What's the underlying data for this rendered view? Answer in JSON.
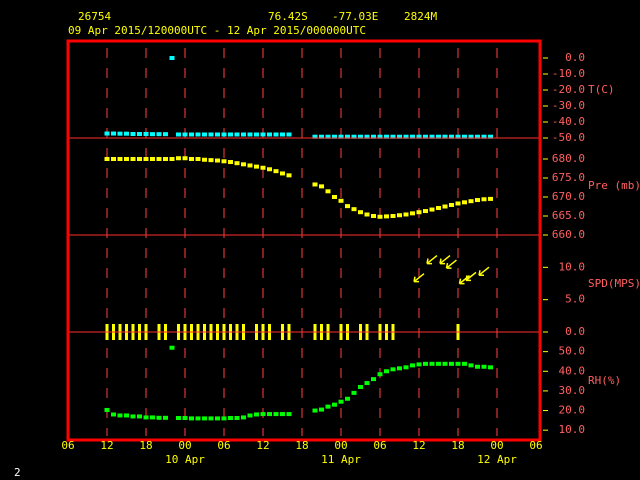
{
  "header": {
    "station": "26754",
    "lat": "76.42S",
    "lon": "-77.03E",
    "elevation": "2824M",
    "period": "09 Apr 2015/120000UTC - 12 Apr 2015/000000UTC",
    "page_number": "2"
  },
  "chart_data": [
    {
      "type": "scatter",
      "ylabel": "T(C)",
      "color": "#00ffff",
      "ylim": [
        -50,
        10
      ],
      "yticks": [
        {
          "value": 0,
          "label": "0.0"
        },
        {
          "value": -10,
          "label": "-10.0"
        },
        {
          "value": -20,
          "label": "-20.0"
        },
        {
          "value": -30,
          "label": "-30.0"
        },
        {
          "value": -40,
          "label": "-40.0"
        },
        {
          "value": -50,
          "label": "-50.0"
        }
      ],
      "x": [
        12,
        13,
        14,
        15,
        16,
        17,
        18,
        19,
        20,
        21,
        22,
        23,
        24,
        25,
        26,
        27,
        28,
        29,
        30,
        31,
        32,
        33,
        34,
        35,
        36,
        37,
        38,
        39,
        40,
        41,
        42,
        43,
        44,
        45,
        46,
        47,
        48,
        49,
        50,
        51,
        52,
        53,
        54,
        55,
        56,
        57,
        58,
        59,
        60,
        61,
        62,
        63,
        64,
        65,
        66,
        67,
        68,
        69,
        70,
        71
      ],
      "values": [
        -47.2,
        -47.2,
        -47.3,
        -47.3,
        -47.5,
        -47.5,
        -47.5,
        -47.6,
        -47.6,
        -47.6,
        0,
        -47.8,
        -47.8,
        -47.8,
        -47.8,
        -47.8,
        -47.8,
        -47.8,
        -47.8,
        -47.8,
        -47.8,
        -47.8,
        -47.8,
        -47.8,
        -47.8,
        -47.8,
        -47.8,
        -47.8,
        -47.8,
        null,
        null,
        null,
        -49.2,
        -49.2,
        -49.2,
        -49.2,
        -49.2,
        -49.2,
        -49.2,
        -49.2,
        -49.2,
        -49.2,
        -49.2,
        -49.2,
        -49.2,
        -49.2,
        -49.2,
        -49.2,
        -49.2,
        -49.2,
        -49.2,
        -49.2,
        -49.2,
        -49.2,
        -49.2,
        -49.2,
        -49.2,
        -49.2,
        -49.2,
        -49.2
      ]
    },
    {
      "type": "scatter",
      "ylabel": "Pre (mb)",
      "color": "#ffff00",
      "ylim": [
        660,
        685
      ],
      "yticks": [
        {
          "value": 680,
          "label": "680.0"
        },
        {
          "value": 675,
          "label": "675.0"
        },
        {
          "value": 670,
          "label": "670.0"
        },
        {
          "value": 665,
          "label": "665.0"
        },
        {
          "value": 660,
          "label": "660.0"
        }
      ],
      "x": [
        12,
        13,
        14,
        15,
        16,
        17,
        18,
        19,
        20,
        21,
        22,
        23,
        24,
        25,
        26,
        27,
        28,
        29,
        30,
        31,
        32,
        33,
        34,
        35,
        36,
        37,
        38,
        39,
        40,
        41,
        42,
        43,
        44,
        45,
        46,
        47,
        48,
        49,
        50,
        51,
        52,
        53,
        54,
        55,
        56,
        57,
        58,
        59,
        60,
        61,
        62,
        63,
        64,
        65,
        66,
        67,
        68,
        69,
        70,
        71
      ],
      "values": [
        680,
        680,
        680,
        680,
        680,
        680,
        680,
        680,
        680,
        680,
        680,
        680.2,
        680.2,
        680,
        680,
        679.8,
        679.7,
        679.6,
        679.4,
        679.2,
        678.9,
        678.6,
        678.3,
        678,
        677.7,
        677.3,
        676.8,
        676.2,
        675.7,
        null,
        null,
        null,
        673.3,
        672.8,
        671.5,
        670,
        669,
        667.6,
        666.8,
        666,
        665.4,
        665,
        664.8,
        664.9,
        665,
        665.2,
        665.4,
        665.7,
        666,
        666.3,
        666.7,
        667.1,
        667.5,
        667.9,
        668.3,
        668.6,
        668.9,
        669.2,
        669.4,
        669.5
      ]
    },
    {
      "type": "wind",
      "ylabel": "SPD(MPS)",
      "color": "#ffff00",
      "ylim": [
        0,
        15
      ],
      "yticks": [
        {
          "value": 10,
          "label": "10.0"
        },
        {
          "value": 5,
          "label": "5.0"
        },
        {
          "value": 0,
          "label": "0.0"
        }
      ],
      "x": [
        12,
        13,
        14,
        15,
        16,
        17,
        18,
        19,
        20,
        21,
        22,
        23,
        24,
        25,
        26,
        27,
        28,
        29,
        30,
        31,
        32,
        33,
        34,
        35,
        36,
        37,
        38,
        39,
        40,
        41,
        42,
        43,
        44,
        45,
        46,
        47,
        48,
        49,
        50,
        51,
        52,
        53,
        54,
        55,
        56,
        57,
        58,
        59,
        60,
        61,
        62,
        63,
        64,
        65,
        66,
        67,
        68,
        69,
        70,
        71
      ],
      "values": [
        0,
        0,
        0,
        0,
        0,
        0,
        0,
        null,
        0,
        0,
        null,
        0,
        0,
        0,
        0,
        0,
        0,
        0,
        0,
        0,
        0,
        0,
        null,
        0,
        0,
        0,
        null,
        0,
        0,
        null,
        null,
        null,
        0,
        0,
        0,
        null,
        0,
        0,
        null,
        0,
        0,
        null,
        0,
        0,
        0,
        null,
        null,
        null,
        8.4,
        null,
        11.2,
        null,
        11.2,
        10.5,
        0,
        8.1,
        8.6,
        null,
        9.4,
        null
      ]
    },
    {
      "type": "scatter",
      "ylabel": "RH(%)",
      "color": "#00ff00",
      "ylim": [
        5,
        60
      ],
      "yticks": [
        {
          "value": 50,
          "label": "50.0"
        },
        {
          "value": 40,
          "label": "40.0"
        },
        {
          "value": 30,
          "label": "30.0"
        },
        {
          "value": 20,
          "label": "20.0"
        },
        {
          "value": 10,
          "label": "10.0"
        }
      ],
      "x": [
        12,
        13,
        14,
        15,
        16,
        17,
        18,
        19,
        20,
        21,
        22,
        23,
        24,
        25,
        26,
        27,
        28,
        29,
        30,
        31,
        32,
        33,
        34,
        35,
        36,
        37,
        38,
        39,
        40,
        41,
        42,
        43,
        44,
        45,
        46,
        47,
        48,
        49,
        50,
        51,
        52,
        53,
        54,
        55,
        56,
        57,
        58,
        59,
        60,
        61,
        62,
        63,
        64,
        65,
        66,
        67,
        68,
        69,
        70,
        71
      ],
      "values": [
        20.3,
        18,
        17.5,
        17.5,
        17,
        17,
        16.5,
        16.5,
        16.3,
        16.3,
        52,
        16.2,
        16.2,
        16,
        16,
        16,
        16,
        16,
        16,
        16.2,
        16.2,
        16.5,
        17.5,
        18,
        18.2,
        18.2,
        18.2,
        18.2,
        18.2,
        null,
        null,
        null,
        20,
        20.5,
        22,
        23,
        24.5,
        26,
        29,
        32,
        34,
        36,
        38.5,
        40,
        41,
        41.5,
        42,
        43,
        43.5,
        43.8,
        43.8,
        43.8,
        43.8,
        43.8,
        43.8,
        43.8,
        43,
        42.3,
        42.3,
        42
      ],
      "xlim": [
        6,
        78
      ],
      "xticks": [
        {
          "value": 6,
          "label": "06"
        },
        {
          "value": 12,
          "label": "12"
        },
        {
          "value": 18,
          "label": "18"
        },
        {
          "value": 24,
          "label": "00"
        },
        {
          "value": 30,
          "label": "06"
        },
        {
          "value": 36,
          "label": "12"
        },
        {
          "value": 42,
          "label": "18"
        },
        {
          "value": 48,
          "label": "00"
        },
        {
          "value": 54,
          "label": "06"
        },
        {
          "value": 60,
          "label": "12"
        },
        {
          "value": 66,
          "label": "18"
        },
        {
          "value": 72,
          "label": "00"
        },
        {
          "value": 78,
          "label": "06"
        }
      ],
      "day_labels": [
        {
          "value": 24,
          "label": "10 Apr"
        },
        {
          "value": 48,
          "label": "11 Apr"
        },
        {
          "value": 72,
          "label": "12 Apr"
        }
      ]
    }
  ]
}
